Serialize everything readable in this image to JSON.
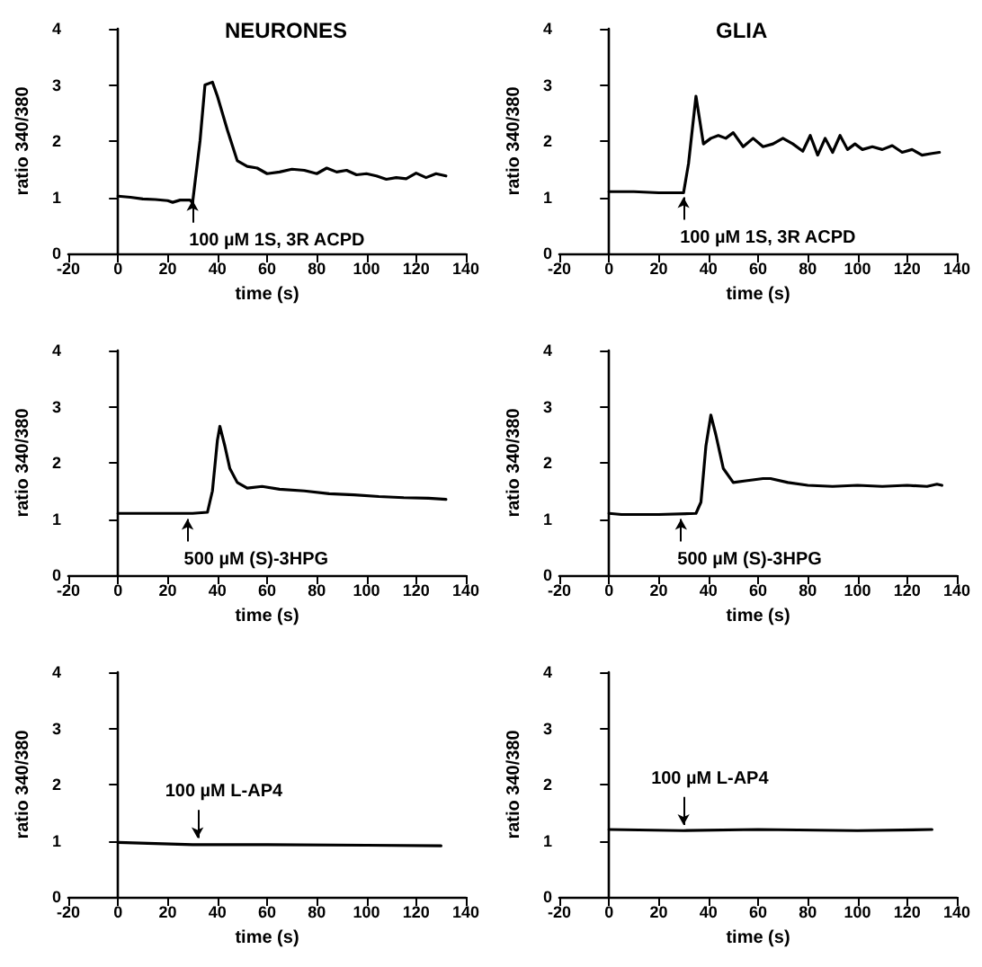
{
  "chart_data": [
    {
      "type": "line",
      "title": "NEURONES",
      "xlabel": "time (s)",
      "ylabel": "ratio 340/380",
      "xlim": [
        -20,
        140
      ],
      "xticks": [
        -20,
        0,
        20,
        40,
        60,
        80,
        100,
        120,
        140
      ],
      "ylim": [
        0,
        4
      ],
      "yticks": [
        0,
        1,
        2,
        3,
        4
      ],
      "marker": "none",
      "annotations": [
        {
          "text": "100 µM 1S, 3R ACPD",
          "x": 30,
          "y": 0.95
        }
      ],
      "series": [
        {
          "color": "#000000",
          "x": [
            0,
            5,
            10,
            15,
            20,
            22,
            25,
            29,
            30,
            33,
            35,
            38,
            40,
            44,
            48,
            52,
            56,
            60,
            65,
            70,
            75,
            80,
            84,
            88,
            92,
            96,
            100,
            104,
            108,
            112,
            116,
            120,
            124,
            128,
            132
          ],
          "values": [
            1.02,
            1.0,
            0.97,
            0.96,
            0.94,
            0.91,
            0.95,
            0.95,
            0.9,
            2.0,
            3.0,
            3.05,
            2.8,
            2.2,
            1.65,
            1.55,
            1.52,
            1.42,
            1.45,
            1.5,
            1.48,
            1.42,
            1.52,
            1.45,
            1.48,
            1.4,
            1.42,
            1.38,
            1.32,
            1.35,
            1.33,
            1.43,
            1.35,
            1.42,
            1.38
          ]
        }
      ]
    },
    {
      "type": "line",
      "title": "GLIA",
      "xlabel": "time (s)",
      "ylabel": "ratio 340/380",
      "xlim": [
        -20,
        140
      ],
      "xticks": [
        -20,
        0,
        20,
        40,
        60,
        80,
        100,
        120,
        140
      ],
      "ylim": [
        0,
        4
      ],
      "yticks": [
        0,
        1,
        2,
        3,
        4
      ],
      "marker": "none",
      "annotations": [
        {
          "text": "100 µM 1S, 3R ACPD",
          "x": 30,
          "y": 1.0
        }
      ],
      "series": [
        {
          "color": "#000000",
          "x": [
            0,
            10,
            20,
            30,
            32,
            35,
            38,
            41,
            44,
            47,
            50,
            54,
            58,
            62,
            66,
            70,
            74,
            78,
            81,
            84,
            87,
            90,
            93,
            96,
            99,
            102,
            106,
            110,
            114,
            118,
            122,
            126,
            130,
            133
          ],
          "values": [
            1.1,
            1.1,
            1.08,
            1.08,
            1.6,
            2.8,
            1.95,
            2.05,
            2.1,
            2.05,
            2.15,
            1.9,
            2.05,
            1.9,
            1.95,
            2.05,
            1.95,
            1.82,
            2.1,
            1.75,
            2.05,
            1.8,
            2.1,
            1.85,
            1.95,
            1.85,
            1.9,
            1.85,
            1.92,
            1.8,
            1.85,
            1.75,
            1.78,
            1.8
          ]
        }
      ]
    },
    {
      "type": "line",
      "xlabel": "time (s)",
      "ylabel": "ratio 340/380",
      "xlim": [
        -20,
        140
      ],
      "xticks": [
        -20,
        0,
        20,
        40,
        60,
        80,
        100,
        120,
        140
      ],
      "ylim": [
        0,
        4
      ],
      "yticks": [
        0,
        1,
        2,
        3,
        4
      ],
      "marker": "none",
      "annotations": [
        {
          "text": "500 µM (S)-3HPG",
          "x": 28,
          "y": 1.0
        }
      ],
      "series": [
        {
          "color": "#000000",
          "x": [
            0,
            10,
            20,
            30,
            36,
            38,
            40,
            41,
            43,
            45,
            48,
            52,
            58,
            65,
            75,
            85,
            95,
            105,
            115,
            125,
            132
          ],
          "values": [
            1.1,
            1.1,
            1.1,
            1.1,
            1.12,
            1.5,
            2.4,
            2.65,
            2.3,
            1.9,
            1.65,
            1.55,
            1.58,
            1.53,
            1.5,
            1.45,
            1.43,
            1.4,
            1.38,
            1.37,
            1.35
          ]
        }
      ]
    },
    {
      "type": "line",
      "xlabel": "time (s)",
      "ylabel": "ratio 340/380",
      "xlim": [
        -20,
        140
      ],
      "xticks": [
        -20,
        0,
        20,
        40,
        60,
        80,
        100,
        120,
        140
      ],
      "ylim": [
        0,
        4
      ],
      "yticks": [
        0,
        1,
        2,
        3,
        4
      ],
      "marker": "none",
      "annotations": [
        {
          "text": "500 µM (S)-3HPG",
          "x": 29,
          "y": 1.0
        }
      ],
      "series": [
        {
          "color": "#000000",
          "x": [
            0,
            5,
            20,
            35,
            37,
            39,
            41,
            43,
            46,
            50,
            55,
            62,
            65,
            72,
            80,
            90,
            100,
            110,
            120,
            128,
            132,
            134
          ],
          "values": [
            1.1,
            1.08,
            1.08,
            1.1,
            1.3,
            2.3,
            2.85,
            2.5,
            1.9,
            1.65,
            1.68,
            1.72,
            1.72,
            1.65,
            1.6,
            1.58,
            1.6,
            1.58,
            1.6,
            1.58,
            1.62,
            1.6
          ]
        }
      ]
    },
    {
      "type": "line",
      "xlabel": "time (s)",
      "ylabel": "ratio 340/380",
      "xlim": [
        -20,
        140
      ],
      "xticks": [
        -20,
        0,
        20,
        40,
        60,
        80,
        100,
        120,
        140
      ],
      "ylim": [
        0,
        4
      ],
      "yticks": [
        0,
        1,
        2,
        3,
        4
      ],
      "marker": "none",
      "annotations": [
        {
          "text": "100 µM L-AP4",
          "x": 32,
          "y": 1.05
        }
      ],
      "series": [
        {
          "color": "#000000",
          "x": [
            0,
            30,
            60,
            100,
            130
          ],
          "values": [
            0.97,
            0.93,
            0.93,
            0.92,
            0.91
          ]
        }
      ]
    },
    {
      "type": "line",
      "xlabel": "time (s)",
      "ylabel": "ratio 340/380",
      "xlim": [
        -20,
        140
      ],
      "xticks": [
        -20,
        0,
        20,
        40,
        60,
        80,
        100,
        120,
        140
      ],
      "ylim": [
        0,
        4
      ],
      "yticks": [
        0,
        1,
        2,
        3,
        4
      ],
      "marker": "none",
      "annotations": [
        {
          "text": "100 µM L-AP4",
          "x": 30,
          "y": 1.28
        }
      ],
      "series": [
        {
          "color": "#000000",
          "x": [
            0,
            30,
            60,
            100,
            130
          ],
          "values": [
            1.2,
            1.18,
            1.2,
            1.18,
            1.2
          ]
        }
      ]
    }
  ]
}
